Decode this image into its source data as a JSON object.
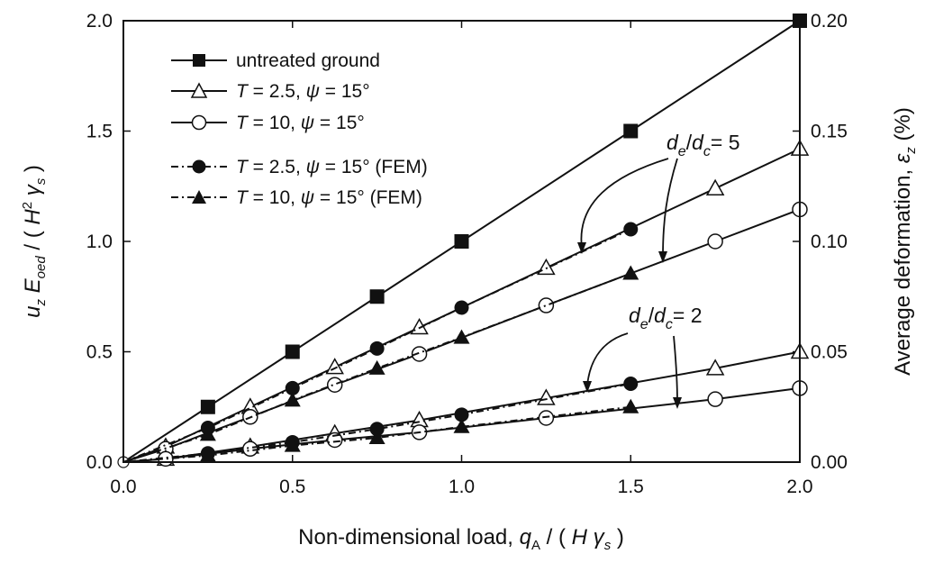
{
  "chart_data": {
    "type": "line",
    "xlabel": {
      "main": "Non-dimensional load, ",
      "q": "q",
      "q_sub": "A",
      "rest": " / ( ",
      "H": "H",
      "gamma": " γ",
      "gamma_sub": "s",
      "close": " )"
    },
    "ylabel": {
      "u": "u",
      "u_sub": "z",
      "E": " E",
      "E_sub": "oed",
      "mid": " / ( ",
      "H": "H",
      "H_sup": "2",
      "gamma": " γ",
      "gamma_sub": "s",
      "close": " )"
    },
    "y2label": {
      "main": "Average deformation, ",
      "eps": "ε",
      "eps_sub": "z",
      "pct": " (%)"
    },
    "xlim": [
      0,
      2
    ],
    "ylim": [
      0,
      2
    ],
    "y2lim": [
      0,
      0.2
    ],
    "xticks": [
      "0.0",
      "0.5",
      "1.0",
      "1.5",
      "2.0"
    ],
    "yticks": [
      "0.0",
      "0.5",
      "1.0",
      "1.5",
      "2.0"
    ],
    "y2ticks": [
      "0.00",
      "0.05",
      "0.10",
      "0.15",
      "0.20"
    ],
    "grid": false,
    "legend_position": "top-left",
    "series": [
      {
        "label_parts": [
          "untreated ground"
        ],
        "marker": "square-filled",
        "style": "solid",
        "points": [
          [
            0,
            0
          ],
          [
            0.25,
            0.25
          ],
          [
            0.5,
            0.5
          ],
          [
            0.75,
            0.75
          ],
          [
            1.0,
            1.0
          ],
          [
            1.5,
            1.5
          ],
          [
            2.0,
            2.0
          ]
        ]
      },
      {
        "label_parts": [
          "T",
          " = 2.5, ",
          "ψ",
          " = 15°"
        ],
        "marker": "triangle-open",
        "style": "solid",
        "points": [
          [
            0,
            0
          ],
          [
            0.125,
            0.07
          ],
          [
            0.375,
            0.25
          ],
          [
            0.625,
            0.43
          ],
          [
            0.875,
            0.61
          ],
          [
            1.25,
            0.88
          ],
          [
            1.75,
            1.24
          ],
          [
            2.0,
            1.42
          ]
        ]
      },
      {
        "label_parts": [
          "T",
          " = 10, ",
          "ψ",
          " = 15°"
        ],
        "marker": "circle-open",
        "style": "solid",
        "points": [
          [
            0,
            0
          ],
          [
            0.125,
            0.06
          ],
          [
            0.375,
            0.205
          ],
          [
            0.625,
            0.35
          ],
          [
            0.875,
            0.49
          ],
          [
            1.25,
            0.71
          ],
          [
            1.75,
            1.0
          ],
          [
            2.0,
            1.145
          ]
        ]
      },
      {
        "label_parts": [
          "T",
          " = 2.5, ",
          "ψ",
          " = 15° (FEM)"
        ],
        "marker": "circle-filled",
        "style": "dash-dot",
        "points": [
          [
            0,
            0
          ],
          [
            0.25,
            0.155
          ],
          [
            0.5,
            0.335
          ],
          [
            0.75,
            0.515
          ],
          [
            1.0,
            0.7
          ],
          [
            1.5,
            1.055
          ]
        ]
      },
      {
        "label_parts": [
          "T",
          " = 10, ",
          "ψ",
          " = 15° (FEM)"
        ],
        "marker": "triangle-filled",
        "style": "dash-dot",
        "points": [
          [
            0,
            0
          ],
          [
            0.25,
            0.125
          ],
          [
            0.5,
            0.28
          ],
          [
            0.75,
            0.425
          ],
          [
            1.0,
            0.565
          ],
          [
            1.5,
            0.855
          ]
        ]
      },
      {
        "marker": "triangle-open",
        "style": "solid",
        "points": [
          [
            0,
            0
          ],
          [
            0.125,
            0.015
          ],
          [
            0.375,
            0.07
          ],
          [
            0.625,
            0.13
          ],
          [
            0.875,
            0.19
          ],
          [
            1.25,
            0.29
          ],
          [
            1.75,
            0.425
          ],
          [
            2.0,
            0.5
          ]
        ]
      },
      {
        "marker": "circle-open",
        "style": "solid",
        "points": [
          [
            0,
            0
          ],
          [
            0.125,
            0.015
          ],
          [
            0.375,
            0.06
          ],
          [
            0.625,
            0.1
          ],
          [
            0.875,
            0.135
          ],
          [
            1.25,
            0.2
          ],
          [
            1.75,
            0.285
          ],
          [
            2.0,
            0.335
          ]
        ]
      },
      {
        "marker": "circle-filled",
        "style": "dash-dot",
        "points": [
          [
            0,
            0
          ],
          [
            0.25,
            0.04
          ],
          [
            0.5,
            0.09
          ],
          [
            0.75,
            0.15
          ],
          [
            1.0,
            0.215
          ],
          [
            1.5,
            0.355
          ]
        ]
      },
      {
        "marker": "triangle-filled",
        "style": "dash-dot",
        "points": [
          [
            0,
            0
          ],
          [
            0.25,
            0.03
          ],
          [
            0.5,
            0.075
          ],
          [
            0.75,
            0.11
          ],
          [
            1.0,
            0.16
          ],
          [
            1.5,
            0.25
          ]
        ]
      }
    ],
    "annotations": [
      {
        "d": "d",
        "e": "e",
        "slash": "/",
        "d2": "d",
        "c": "c",
        "value": "= 5"
      },
      {
        "d": "d",
        "e": "e",
        "slash": "/",
        "d2": "d",
        "c": "c",
        "value": "= 2"
      }
    ]
  }
}
